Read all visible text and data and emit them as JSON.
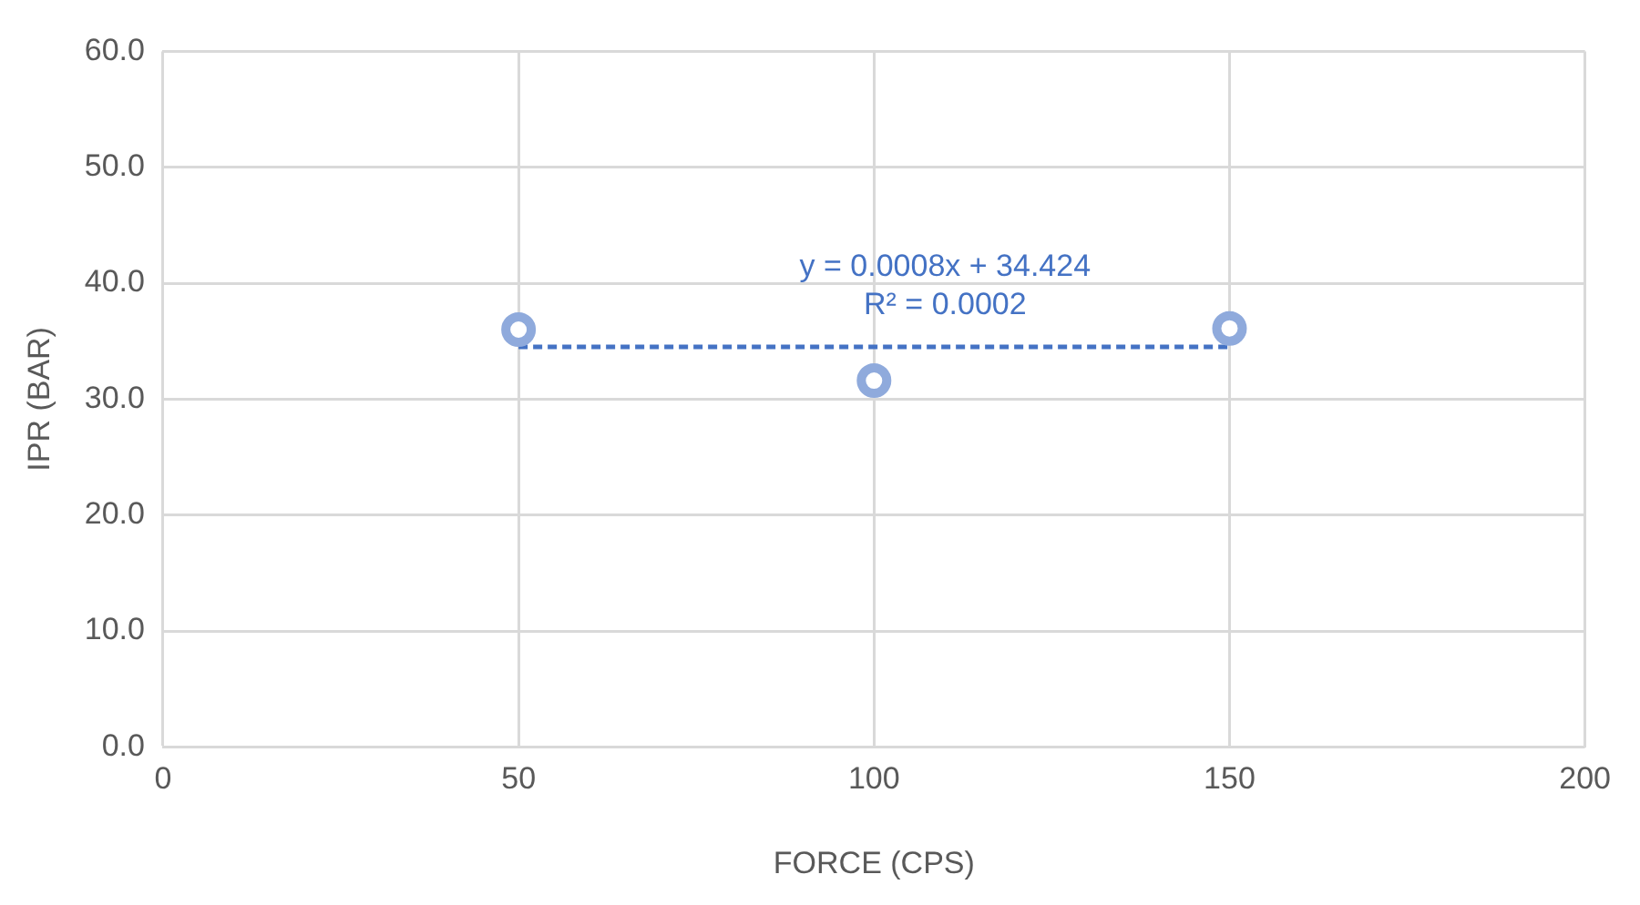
{
  "chart_data": {
    "type": "scatter",
    "xlabel": "FORCE (CPS)",
    "ylabel": "IPR (BAR)",
    "xlim": [
      0,
      200
    ],
    "xticks": [
      0,
      50,
      100,
      150,
      200
    ],
    "ylim": [
      0,
      60
    ],
    "yticks": [
      {
        "value": 0,
        "label": "0.0"
      },
      {
        "value": 10,
        "label": "10.0"
      },
      {
        "value": 20,
        "label": "20.0"
      },
      {
        "value": 30,
        "label": "30.0"
      },
      {
        "value": 40,
        "label": "40.0"
      },
      {
        "value": 50,
        "label": "50.0"
      },
      {
        "value": 60,
        "label": "60.0"
      }
    ],
    "grid": true,
    "legend": false,
    "marker": "circle",
    "series": [
      {
        "type": "scatter",
        "color": "#8faadc",
        "x": [
          50,
          100,
          150
        ],
        "values": [
          36.0,
          31.6,
          36.1
        ]
      },
      {
        "type": "line",
        "color": "#4472c4",
        "line_style": "dashed",
        "marker": "none",
        "x": [
          50,
          150
        ],
        "values": [
          34.5,
          34.5
        ]
      }
    ],
    "annotations": [
      "y = 0.0008x + 34.424",
      "R² = 0.0002"
    ]
  }
}
